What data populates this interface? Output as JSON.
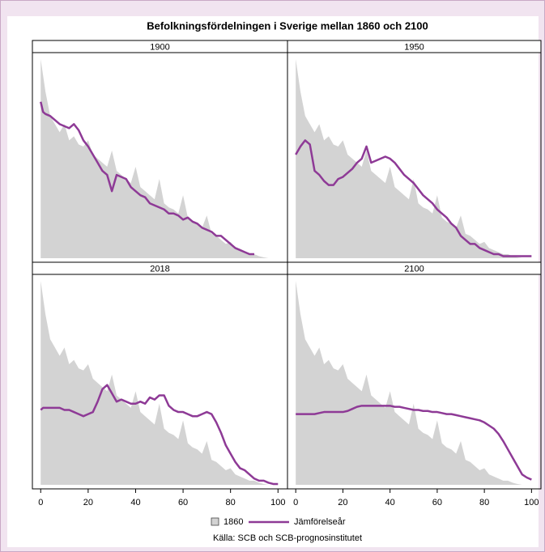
{
  "chart_data": {
    "type": "area-line",
    "title": "Befolkningsfördelningen i Sverige mellan 1860 och 2100",
    "source": "Källa: SCB och SCB-prognosinstitutet",
    "x": [
      0,
      1,
      2,
      4,
      6,
      8,
      10,
      12,
      14,
      16,
      18,
      20,
      22,
      24,
      26,
      28,
      30,
      32,
      34,
      36,
      38,
      40,
      42,
      44,
      46,
      48,
      50,
      52,
      54,
      56,
      58,
      60,
      62,
      64,
      66,
      68,
      70,
      72,
      74,
      76,
      78,
      80,
      82,
      84,
      86,
      88,
      90,
      92,
      94,
      96,
      98,
      100
    ],
    "xlim": [
      -3.5,
      104
    ],
    "xticks": [
      0,
      20,
      40,
      60,
      80,
      100
    ],
    "ylim": [
      0,
      100
    ],
    "series": [
      {
        "name": "1860",
        "color": "#d3d3d3",
        "values": [
          98,
          90,
          82,
          70,
          66,
          62,
          66,
          58,
          60,
          56,
          55,
          58,
          51,
          49,
          47,
          45,
          53,
          43,
          41,
          39,
          37,
          45,
          35,
          33,
          31,
          29,
          39,
          27,
          25,
          24,
          22,
          31,
          20,
          18,
          17,
          15,
          21,
          12,
          11,
          9,
          7,
          8,
          5,
          4,
          3,
          2,
          2,
          1,
          0.4,
          0,
          0,
          0
        ]
      },
      {
        "name": "Jämförelseår",
        "color": "#8e3a96"
      }
    ],
    "panels": [
      {
        "title": "1900",
        "values": [
          77,
          72,
          71,
          70,
          68,
          66,
          65,
          64,
          66,
          63,
          58,
          55,
          51,
          47,
          43,
          41,
          33,
          41,
          40,
          39,
          35,
          33,
          31,
          30,
          27,
          26,
          25,
          24,
          22,
          22,
          21,
          19,
          20,
          18,
          17,
          15,
          14,
          13,
          11,
          11,
          9,
          7,
          5,
          4,
          3,
          2,
          2,
          null,
          null,
          null,
          null,
          null
        ]
      },
      {
        "title": "1950",
        "values": [
          51,
          53,
          55,
          58,
          56,
          43,
          41,
          38,
          36,
          36,
          39,
          40,
          42,
          44,
          47,
          49,
          55,
          47,
          48,
          49,
          50,
          49,
          47,
          44,
          41,
          39,
          37,
          34,
          31,
          29,
          27,
          24,
          22,
          20,
          17,
          15,
          11,
          9,
          7,
          7,
          5,
          4,
          3,
          2,
          2,
          1,
          1,
          1,
          1,
          1,
          1,
          1
        ]
      },
      {
        "title": "2018",
        "values": [
          36,
          37,
          37,
          37,
          37,
          37,
          36,
          36,
          35,
          34,
          33,
          34,
          35,
          40,
          46,
          48,
          44,
          40,
          41,
          40,
          39,
          39,
          40,
          39,
          42,
          41,
          43,
          43,
          38,
          36,
          35,
          35,
          34,
          33,
          33,
          34,
          35,
          34,
          30,
          25,
          19,
          15,
          11,
          8,
          7,
          5,
          3,
          2,
          2,
          1,
          0.4,
          0.4
        ]
      },
      {
        "title": "2100",
        "values": [
          34,
          34,
          34,
          34,
          34,
          34,
          34.5,
          35,
          35,
          35,
          35,
          35,
          35.5,
          36.5,
          37.5,
          38,
          38,
          38,
          38,
          38,
          38,
          38,
          37.5,
          37.5,
          37,
          36.5,
          36,
          36,
          35.5,
          35.5,
          35,
          35,
          34.5,
          34,
          34,
          33.5,
          33,
          32.5,
          32,
          31.5,
          31,
          30,
          28.5,
          27,
          24.5,
          21,
          17,
          13,
          9,
          5,
          3.5,
          2.5
        ]
      }
    ]
  }
}
